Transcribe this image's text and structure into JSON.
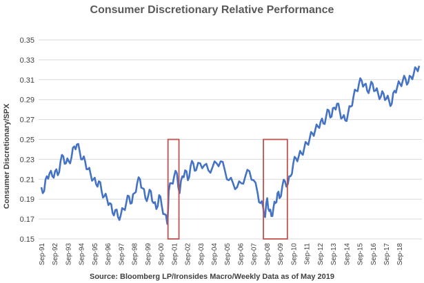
{
  "chart_data": {
    "type": "line",
    "title": "Consumer Discretionary Relative Performance",
    "ylabel": "Consumer Discretionary/SPX",
    "xlabel": "",
    "source": "Source: Bloomberg LP/Ironsides Macro/Weekly Data as of May 2019",
    "ylim": [
      0.15,
      0.35
    ],
    "yticks": [
      "0.15",
      "0.17",
      "0.19",
      "0.21",
      "0.23",
      "0.25",
      "0.27",
      "0.29",
      "0.31",
      "0.33",
      "0.35"
    ],
    "xticks": [
      "Sep-91",
      "Sep-92",
      "Sep-93",
      "Sep-94",
      "Sep-95",
      "Sep-96",
      "Sep-97",
      "Sep-98",
      "Sep-99",
      "Sep-00",
      "Sep-01",
      "Sep-02",
      "Sep-03",
      "Sep-04",
      "Sep-05",
      "Sep-06",
      "Sep-07",
      "Sep-08",
      "Sep-09",
      "Sep-10",
      "Sep-11",
      "Sep-12",
      "Sep-13",
      "Sep-14",
      "Sep-15",
      "Sep-16",
      "Sep-17",
      "Sep-18"
    ],
    "grid": true,
    "line_color": "#4472C4",
    "highlight_color": "#C0504D",
    "highlights": [
      {
        "x_start": 2000.95,
        "x_end": 2001.75,
        "y_start": 0.15,
        "y_end": 0.25
      },
      {
        "x_start": 2007.92,
        "x_end": 2009.67,
        "y_start": 0.15,
        "y_end": 0.25
      }
    ],
    "series": [
      {
        "x": [
          1991.7,
          1991.9,
          1992.1,
          1992.3,
          1992.5,
          1992.7,
          1992.9,
          1993.1,
          1993.3,
          1993.5,
          1993.7,
          1993.9,
          1994.1,
          1994.3,
          1994.5,
          1994.7,
          1994.9,
          1995.1,
          1995.3,
          1995.5,
          1995.7,
          1995.9,
          1996.1,
          1996.3,
          1996.5,
          1996.7,
          1996.9,
          1997.1,
          1997.3,
          1997.5,
          1997.7,
          1997.9,
          1998.1,
          1998.3,
          1998.5,
          1998.7,
          1998.9,
          1999.1,
          1999.3,
          1999.5,
          1999.7,
          1999.9,
          2000.1,
          2000.3,
          2000.5,
          2000.7,
          2000.9,
          2001.0,
          2001.2,
          2001.4,
          2001.6,
          2001.8,
          2002.0,
          2002.2,
          2002.4,
          2002.6,
          2002.8,
          2003.0,
          2003.3,
          2003.6,
          2003.9,
          2004.2,
          2004.5,
          2004.8,
          2005.1,
          2005.4,
          2005.7,
          2006.0,
          2006.3,
          2006.6,
          2006.9,
          2007.2,
          2007.5,
          2007.7,
          2007.9,
          2008.05,
          2008.2,
          2008.35,
          2008.5,
          2008.65,
          2008.8,
          2008.95,
          2009.1,
          2009.3,
          2009.5,
          2009.7,
          2009.9,
          2010.1,
          2010.3,
          2010.5,
          2010.7,
          2010.9,
          2011.1,
          2011.3,
          2011.5,
          2011.7,
          2011.9,
          2012.1,
          2012.3,
          2012.5,
          2012.7,
          2012.9,
          2013.1,
          2013.3,
          2013.5,
          2013.7,
          2013.9,
          2014.1,
          2014.3,
          2014.5,
          2014.7,
          2014.9,
          2015.1,
          2015.3,
          2015.5,
          2015.7,
          2015.9,
          2016.1,
          2016.3,
          2016.5,
          2016.7,
          2016.9,
          2017.1,
          2017.3,
          2017.5,
          2017.7,
          2017.9,
          2018.1,
          2018.3,
          2018.5,
          2018.7,
          2018.9,
          2019.1,
          2019.3
        ],
        "y": [
          0.202,
          0.198,
          0.213,
          0.216,
          0.213,
          0.218,
          0.214,
          0.228,
          0.233,
          0.226,
          0.228,
          0.232,
          0.243,
          0.245,
          0.238,
          0.23,
          0.228,
          0.22,
          0.215,
          0.21,
          0.205,
          0.208,
          0.198,
          0.193,
          0.19,
          0.186,
          0.176,
          0.179,
          0.172,
          0.174,
          0.18,
          0.186,
          0.193,
          0.186,
          0.196,
          0.206,
          0.21,
          0.201,
          0.191,
          0.193,
          0.198,
          0.186,
          0.18,
          0.194,
          0.183,
          0.175,
          0.165,
          0.198,
          0.206,
          0.213,
          0.216,
          0.196,
          0.213,
          0.219,
          0.209,
          0.223,
          0.226,
          0.219,
          0.226,
          0.224,
          0.219,
          0.222,
          0.226,
          0.228,
          0.219,
          0.209,
          0.206,
          0.202,
          0.206,
          0.213,
          0.218,
          0.209,
          0.196,
          0.186,
          0.182,
          0.172,
          0.191,
          0.178,
          0.173,
          0.181,
          0.186,
          0.196,
          0.191,
          0.203,
          0.208,
          0.205,
          0.213,
          0.226,
          0.231,
          0.233,
          0.236,
          0.241,
          0.246,
          0.251,
          0.256,
          0.259,
          0.263,
          0.268,
          0.266,
          0.273,
          0.279,
          0.273,
          0.282,
          0.286,
          0.278,
          0.272,
          0.269,
          0.276,
          0.283,
          0.293,
          0.299,
          0.306,
          0.309,
          0.305,
          0.299,
          0.302,
          0.306,
          0.299,
          0.296,
          0.293,
          0.296,
          0.291,
          0.289,
          0.286,
          0.299,
          0.303,
          0.306,
          0.309,
          0.311,
          0.307,
          0.313,
          0.316,
          0.321,
          0.324
        ]
      }
    ]
  }
}
